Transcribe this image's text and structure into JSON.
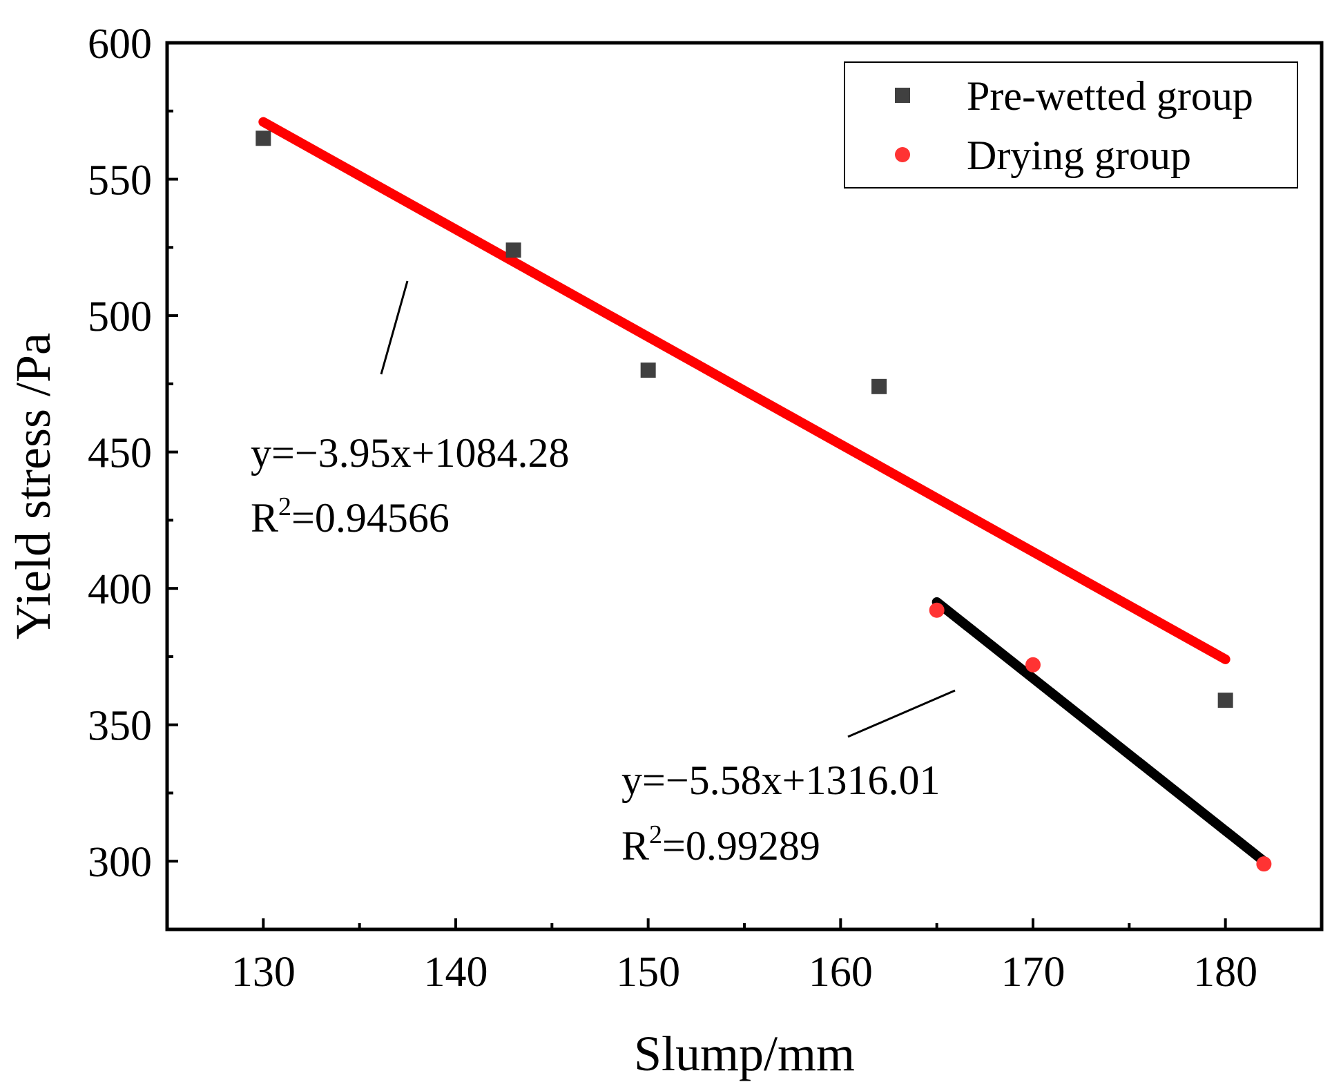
{
  "chart_data": {
    "type": "scatter",
    "xlabel": "Slump/mm",
    "ylabel": "Yield stress /Pa",
    "xlim": [
      125,
      185
    ],
    "ylim": [
      275,
      600
    ],
    "x_ticks": [
      130,
      140,
      150,
      160,
      170,
      180
    ],
    "y_ticks": [
      300,
      350,
      400,
      450,
      500,
      550,
      600
    ],
    "grid": false,
    "legend_position": "top-right",
    "series": [
      {
        "name": "Pre-wetted group",
        "marker": "square",
        "color": "#404040",
        "x": [
          130,
          143,
          150,
          162,
          180
        ],
        "y": [
          565,
          524,
          480,
          474,
          359
        ]
      },
      {
        "name": "Drying group",
        "marker": "circle",
        "color": "#ff3333",
        "x": [
          165,
          170,
          182
        ],
        "y": [
          392,
          372,
          299
        ]
      }
    ],
    "fits": [
      {
        "color": "#ff0000",
        "x_range": [
          130,
          180
        ],
        "y_range": [
          571,
          374
        ],
        "equation": "y=−3.95x+1084.28",
        "r2_prefix": "R",
        "r2_exp": "2",
        "r2_value": "=0.94566"
      },
      {
        "color": "#000000",
        "x_range": [
          165,
          182
        ],
        "y_range": [
          395,
          300
        ],
        "equation": "y=−5.58x+1316.01",
        "r2_prefix": "R",
        "r2_exp": "2",
        "r2_value": "=0.99289"
      }
    ]
  }
}
